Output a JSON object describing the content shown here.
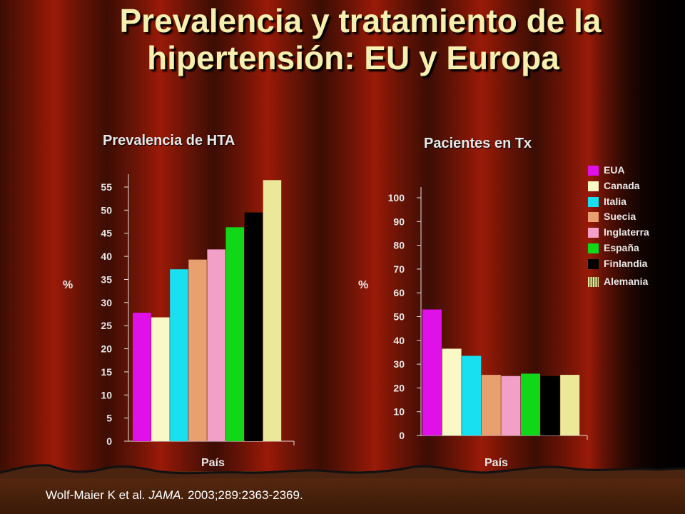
{
  "title_line1": "Prevalencia y tratamiento de la",
  "title_line2": "hipertensión: EU y Europa",
  "colors": {
    "EUA": "#e010e8",
    "Canada": "#fbf8c8",
    "Italia": "#18e0f0",
    "Suecia": "#e8a070",
    "Inglaterra": "#f2a0c8",
    "España": "#10d818",
    "Finlandia": "#000000",
    "Alemania": "#ece89a"
  },
  "legend": [
    {
      "label": "EUA",
      "color": "#e010e8",
      "pattern": "solid"
    },
    {
      "label": "Canada",
      "color": "#fbf8c8",
      "pattern": "solid"
    },
    {
      "label": "Italia",
      "color": "#18e0f0",
      "pattern": "solid"
    },
    {
      "label": "Suecia",
      "color": "#e8a070",
      "pattern": "solid"
    },
    {
      "label": "Inglaterra",
      "color": "#f2a0c8",
      "pattern": "solid"
    },
    {
      "label": "España",
      "color": "#10d818",
      "pattern": "solid"
    },
    {
      "label": "Finlandia",
      "color": "#000000",
      "pattern": "solid"
    },
    {
      "label": "Alemania",
      "color": "#ece89a",
      "pattern": "striped"
    }
  ],
  "chart_data": [
    {
      "type": "bar",
      "title": "Prevalencia de HTA",
      "xlabel": "País",
      "ylabel": "%",
      "ylim": [
        0,
        55
      ],
      "yticks": [
        0,
        5,
        10,
        15,
        20,
        25,
        30,
        35,
        40,
        45,
        50,
        55
      ],
      "categories": [
        "EUA",
        "Canada",
        "Italia",
        "Suecia",
        "Inglaterra",
        "España",
        "Finlandia",
        "Alemania"
      ],
      "values": [
        27.8,
        26.8,
        37.2,
        39.3,
        41.5,
        46.3,
        49.5,
        56.5
      ],
      "grid": false,
      "legend": "right"
    },
    {
      "type": "bar",
      "title": "Pacientes en Tx",
      "xlabel": "País",
      "ylabel": "%",
      "ylim": [
        0,
        100
      ],
      "yticks": [
        0,
        10,
        20,
        30,
        40,
        50,
        60,
        70,
        80,
        90,
        100
      ],
      "categories": [
        "EUA",
        "Canada",
        "Italia",
        "Suecia",
        "Inglaterra",
        "España",
        "Finlandia",
        "Alemania"
      ],
      "values": [
        53,
        36.5,
        33.5,
        25.5,
        25,
        26,
        25,
        25.5
      ],
      "grid": false,
      "legend": "right"
    }
  ],
  "citation": {
    "authors": "Wolf-Maier K et al. ",
    "journal": "JAMA.",
    "details": " 2003;289:2363-2369."
  }
}
